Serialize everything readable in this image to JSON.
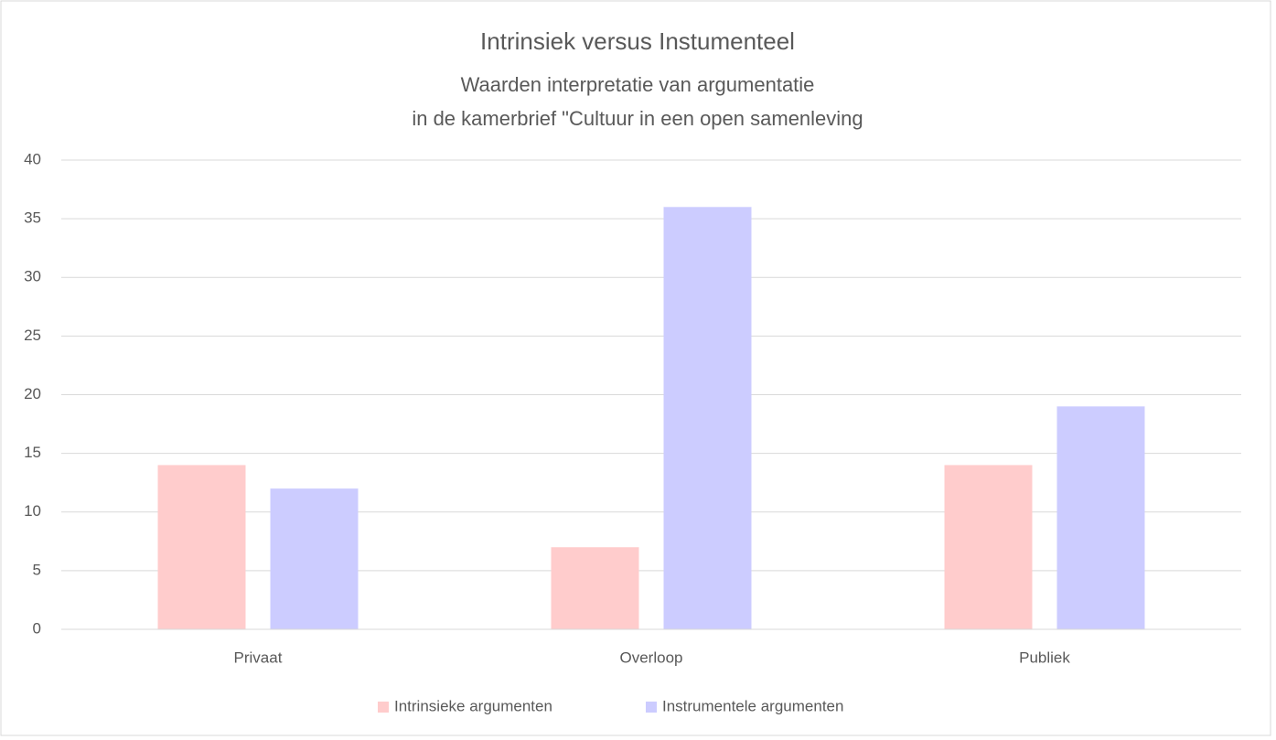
{
  "chart_data": {
    "type": "bar",
    "title": "Intrinsiek versus Instumenteel",
    "subtitle": [
      "Waarden interpretatie van argumentatie",
      "in de kamerbrief \"Cultuur in een open samenleving"
    ],
    "categories": [
      "Privaat",
      "Overloop",
      "Publiek"
    ],
    "series": [
      {
        "name": "Intrinsieke argumenten",
        "color": "#ffcccc",
        "values": [
          14,
          7,
          14
        ]
      },
      {
        "name": "Instrumentele argumenten",
        "color": "#ccccff",
        "values": [
          12,
          36,
          19
        ]
      }
    ],
    "ylim": [
      0,
      40
    ],
    "yticks": [
      0,
      5,
      10,
      15,
      20,
      25,
      30,
      35,
      40
    ],
    "grid": true,
    "legend": "bottom"
  }
}
